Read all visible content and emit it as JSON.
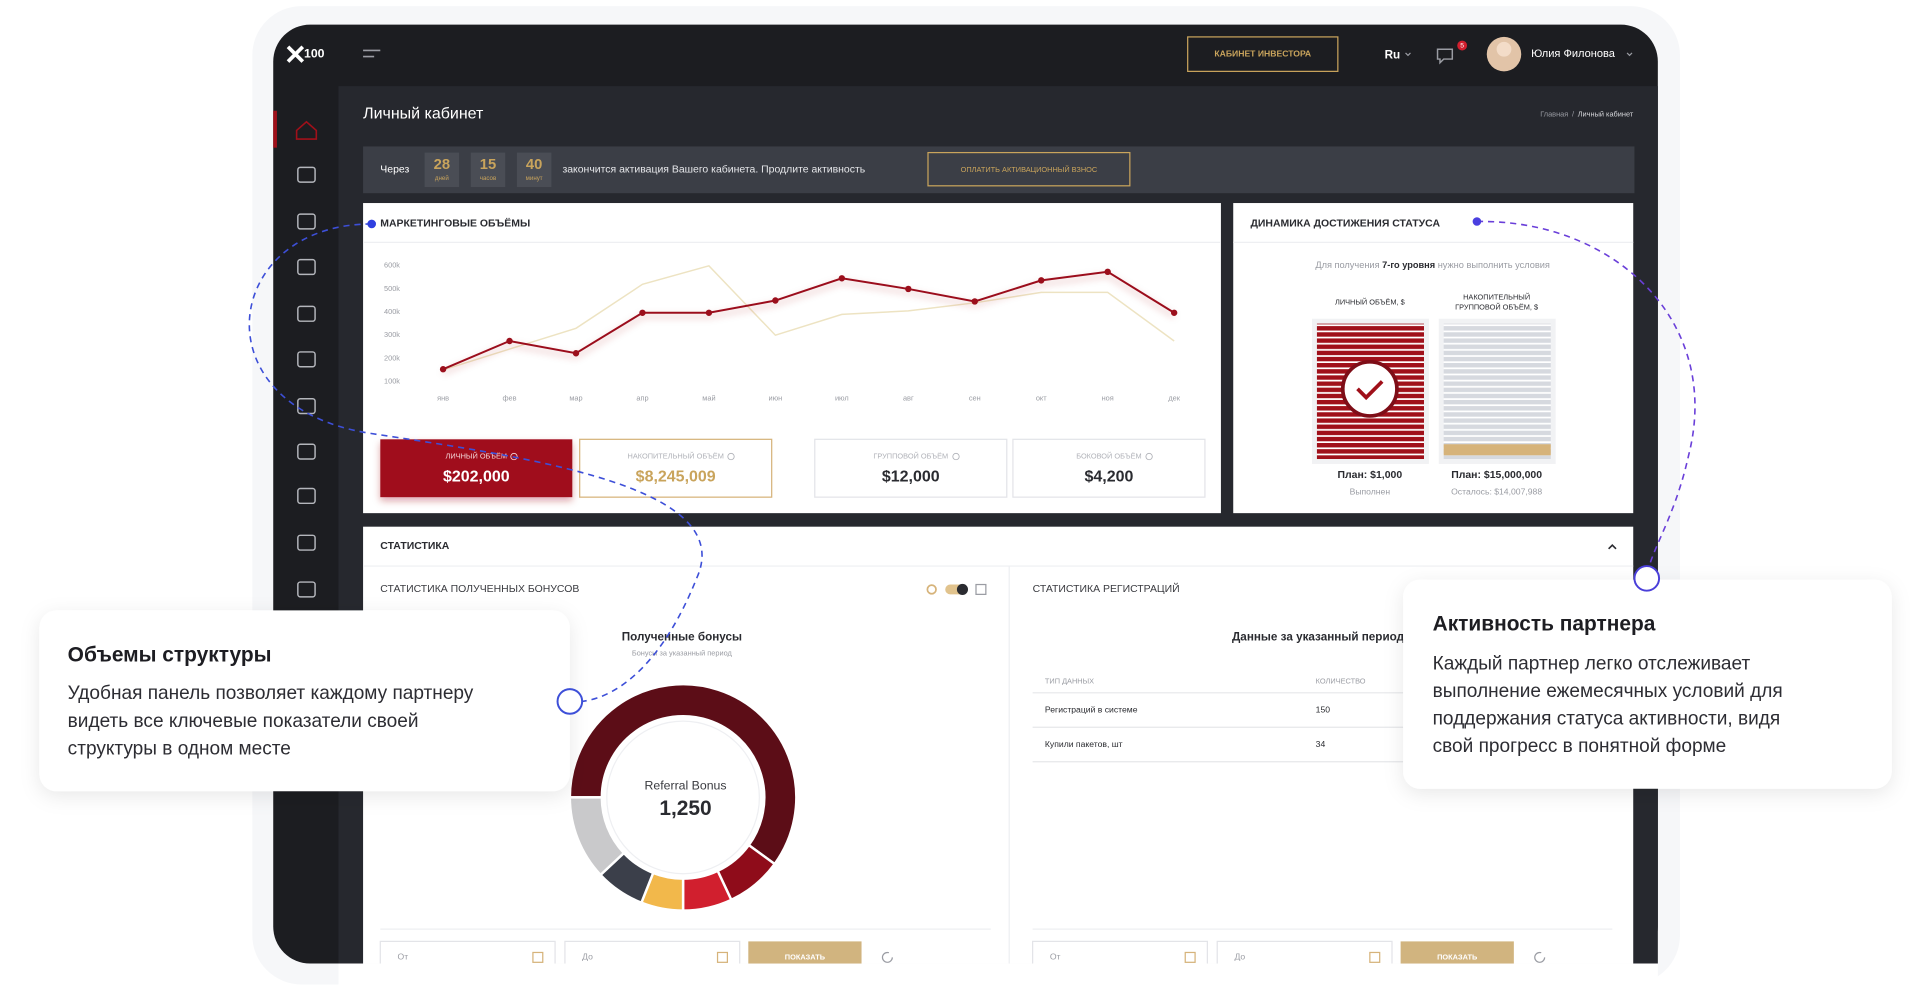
{
  "header": {
    "logo": "100",
    "investor_button": "КАБИНЕТ ИНВЕСТОРА",
    "language": "Ru",
    "notifications": "5",
    "user": "Юлия Филонова"
  },
  "page": {
    "title": "Личный кабинет",
    "breadcrumb": [
      "Главная",
      "/",
      "Личный кабинет"
    ]
  },
  "countdown": {
    "prefix": "Через",
    "units": [
      {
        "value": "28",
        "label": "дней"
      },
      {
        "value": "15",
        "label": "часов"
      },
      {
        "value": "40",
        "label": "минут"
      }
    ],
    "message": "закончится активация Вашего кабинета. Продлите активность",
    "button": "ОПЛАТИТЬ АКТИВАЦИОННЫЙ ВЗНОС"
  },
  "chart_data": [
    {
      "type": "line",
      "title": "МАРКЕТИНГОВЫЕ ОБЪЁМЫ",
      "categories": [
        "янв",
        "фев",
        "мар",
        "апр",
        "май",
        "июн",
        "июл",
        "авг",
        "сен",
        "окт",
        "ноя",
        "дек"
      ],
      "series": [
        {
          "color": "#ede3c2",
          "values": [
            150,
            240,
            330,
            520,
            600,
            300,
            390,
            405,
            440,
            485,
            485,
            275
          ]
        },
        {
          "color": "#9b0f1c",
          "values": [
            153,
            275,
            222,
            397,
            397,
            450,
            546,
            500,
            446,
            537,
            574,
            397
          ]
        }
      ],
      "ylim": [
        100,
        600
      ],
      "yticks": [
        {
          "value": 100,
          "label": "100k"
        },
        {
          "value": 200,
          "label": "200k"
        },
        {
          "value": 300,
          "label": "300k"
        },
        {
          "value": 400,
          "label": "400k"
        },
        {
          "value": 500,
          "label": "500k"
        },
        {
          "value": 600,
          "label": "600k"
        }
      ]
    },
    {
      "type": "pie",
      "title": "Полученные бонусы",
      "subtitle": "Бонусы за указанный период",
      "values": [
        60,
        8,
        7,
        6,
        7,
        12
      ],
      "colors": [
        "#5c0d17",
        "#8f0c1a",
        "#d11f2e",
        "#f2b84b",
        "#3b3f4a",
        "#c9c9cb"
      ],
      "center_label": "Referral Bonus",
      "center_value": "1,250"
    }
  ],
  "volume_cards": [
    {
      "label": "ЛИЧНЫЙ ОБЪЁМ",
      "value": "$202,000"
    },
    {
      "label": "НАКОПИТЕЛЬНЫЙ ОБЪЁМ",
      "value": "$8,245,009"
    },
    {
      "label": "ГРУППОВОЙ ОБЪЁМ",
      "value": "$12,000"
    },
    {
      "label": "БОКОВОЙ ОБЪЁМ",
      "value": "$4,200"
    }
  ],
  "status": {
    "title": "ДИНАМИКА ДОСТИЖЕНИЯ СТАТУСА",
    "subtitle": [
      "Для получения ",
      "7-го уровня",
      " нужно выполнить условия"
    ],
    "columns": [
      {
        "label": [
          "ЛИЧНЫЙ ОБЪЁМ, $"
        ],
        "plan": "План: $1,000",
        "note": "Выполнен"
      },
      {
        "label": [
          "НАКОПИТЕЛЬНЫЙ",
          "ГРУППОВОЙ ОБЪЁМ, $"
        ],
        "plan": "План: $15,000,000",
        "note": "Осталось: $14,007,988"
      }
    ]
  },
  "statistics": {
    "title": "СТАТИСТИКА",
    "bonuses": {
      "title": "СТАТИСТИКА ПОЛУЧЕННЫХ БОНУСОВ"
    },
    "registrations": {
      "title": "СТАТИСТИКА РЕГИСТРАЦИЙ",
      "heading": "Данные за указанный период",
      "table": {
        "header": [
          "ТИП ДАННЫХ",
          "КОЛИЧЕСТВО"
        ],
        "rows": [
          [
            "Регистраций в системе",
            "150"
          ],
          [
            "Купили пакетов, шт",
            "34"
          ]
        ]
      }
    },
    "filters": {
      "from": "От",
      "to": "До",
      "button": "ПОКАЗАТЬ"
    }
  },
  "callouts": [
    {
      "title": "Объемы структуры",
      "lines": [
        "Удобная панель позволяет каждому партнеру",
        "видеть все ключевые показатели своей",
        "структуры в одном месте"
      ]
    },
    {
      "title": "Активность партнера",
      "lines": [
        "Каждый партнер легко отслеживает",
        "выполнение ежемесячных условий для",
        "поддержания статуса активности, видя",
        "свой прогресс в понятной форме"
      ]
    }
  ]
}
